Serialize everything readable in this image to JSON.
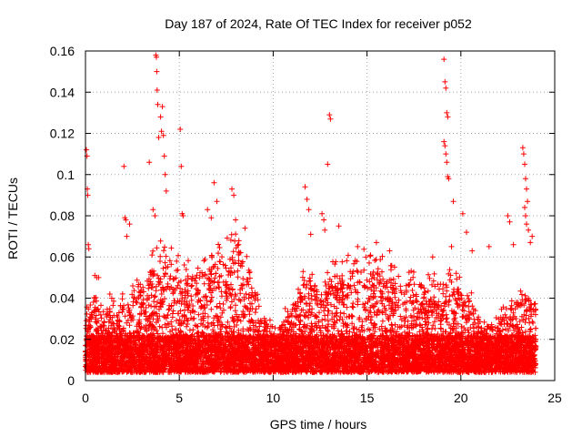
{
  "chart_data": {
    "type": "scatter",
    "title": "Day 187 of 2024, Rate Of TEC Index for receiver p052",
    "xlabel": "GPS time / hours",
    "ylabel": "ROTI / TECUs",
    "xlim": [
      0,
      25
    ],
    "ylim": [
      0,
      0.16
    ],
    "xticks": [
      0,
      5,
      10,
      15,
      20,
      25
    ],
    "yticks": [
      0,
      0.02,
      0.04,
      0.06,
      0.08,
      0.1,
      0.12,
      0.14,
      0.16
    ],
    "xtick_labels": [
      "0",
      "5",
      "10",
      "15",
      "20",
      "25"
    ],
    "ytick_labels": [
      "0",
      "0.02",
      "0.04",
      "0.06",
      "0.08",
      "0.1",
      "0.12",
      "0.14",
      "0.16"
    ],
    "grid": true,
    "legend": "none",
    "marker": "+",
    "series_color": "#ff0000",
    "data_time_range_hours": [
      0,
      24
    ],
    "points": [
      [
        0.05,
        0.112
      ],
      [
        0.08,
        0.109
      ],
      [
        0.1,
        0.093
      ],
      [
        0.12,
        0.09
      ],
      [
        0.15,
        0.066
      ],
      [
        0.18,
        0.064
      ],
      [
        0.5,
        0.051
      ],
      [
        0.6,
        0.05
      ],
      [
        0.7,
        0.05
      ],
      [
        1.3,
        0.042
      ],
      [
        1.4,
        0.04
      ],
      [
        2.05,
        0.104
      ],
      [
        2.1,
        0.079
      ],
      [
        2.15,
        0.078
      ],
      [
        2.2,
        0.07
      ],
      [
        2.35,
        0.076
      ],
      [
        3.4,
        0.106
      ],
      [
        3.6,
        0.083
      ],
      [
        3.7,
        0.08
      ],
      [
        3.75,
        0.158
      ],
      [
        3.78,
        0.157
      ],
      [
        3.8,
        0.15
      ],
      [
        3.82,
        0.141
      ],
      [
        3.85,
        0.134
      ],
      [
        3.9,
        0.118
      ],
      [
        4.0,
        0.128
      ],
      [
        4.05,
        0.121
      ],
      [
        4.1,
        0.133
      ],
      [
        4.15,
        0.119
      ],
      [
        4.2,
        0.109
      ],
      [
        4.25,
        0.1
      ],
      [
        4.3,
        0.092
      ],
      [
        5.05,
        0.122
      ],
      [
        5.1,
        0.104
      ],
      [
        5.15,
        0.081
      ],
      [
        5.2,
        0.08
      ],
      [
        6.5,
        0.083
      ],
      [
        6.7,
        0.079
      ],
      [
        6.85,
        0.096
      ],
      [
        7.0,
        0.087
      ],
      [
        7.8,
        0.093
      ],
      [
        7.9,
        0.09
      ],
      [
        8.0,
        0.078
      ],
      [
        8.5,
        0.074
      ],
      [
        11.7,
        0.094
      ],
      [
        11.8,
        0.088
      ],
      [
        11.9,
        0.083
      ],
      [
        12.0,
        0.071
      ],
      [
        12.6,
        0.081
      ],
      [
        12.7,
        0.078
      ],
      [
        12.75,
        0.073
      ],
      [
        12.9,
        0.105
      ],
      [
        13.0,
        0.129
      ],
      [
        13.05,
        0.127
      ],
      [
        13.5,
        0.075
      ],
      [
        14.5,
        0.065
      ],
      [
        15.5,
        0.067
      ],
      [
        16.2,
        0.063
      ],
      [
        18.5,
        0.06
      ],
      [
        19.1,
        0.156
      ],
      [
        19.15,
        0.145
      ],
      [
        19.2,
        0.142
      ],
      [
        19.25,
        0.13
      ],
      [
        19.3,
        0.128
      ],
      [
        19.1,
        0.116
      ],
      [
        19.15,
        0.114
      ],
      [
        19.2,
        0.11
      ],
      [
        19.25,
        0.106
      ],
      [
        19.3,
        0.099
      ],
      [
        19.35,
        0.098
      ],
      [
        19.6,
        0.087
      ],
      [
        19.5,
        0.065
      ],
      [
        20.1,
        0.081
      ],
      [
        20.3,
        0.072
      ],
      [
        20.6,
        0.063
      ],
      [
        21.5,
        0.065
      ],
      [
        22.5,
        0.08
      ],
      [
        22.6,
        0.077
      ],
      [
        22.8,
        0.066
      ],
      [
        23.3,
        0.113
      ],
      [
        23.35,
        0.11
      ],
      [
        23.4,
        0.105
      ],
      [
        23.45,
        0.098
      ],
      [
        23.5,
        0.093
      ],
      [
        23.55,
        0.087
      ],
      [
        23.4,
        0.084
      ],
      [
        23.45,
        0.08
      ],
      [
        23.5,
        0.076
      ],
      [
        23.6,
        0.073
      ],
      [
        23.8,
        0.07
      ],
      [
        23.7,
        0.067
      ]
    ],
    "density_profile": [
      [
        0.0,
        0.028
      ],
      [
        0.5,
        0.032
      ],
      [
        1.0,
        0.028
      ],
      [
        1.5,
        0.03
      ],
      [
        2.0,
        0.035
      ],
      [
        2.5,
        0.04
      ],
      [
        3.0,
        0.042
      ],
      [
        3.5,
        0.05
      ],
      [
        4.0,
        0.058
      ],
      [
        4.5,
        0.055
      ],
      [
        5.0,
        0.05
      ],
      [
        5.5,
        0.048
      ],
      [
        6.0,
        0.046
      ],
      [
        6.5,
        0.05
      ],
      [
        7.0,
        0.054
      ],
      [
        7.5,
        0.058
      ],
      [
        8.0,
        0.06
      ],
      [
        8.5,
        0.052
      ],
      [
        9.0,
        0.038
      ],
      [
        9.5,
        0.026
      ],
      [
        10.0,
        0.022
      ],
      [
        10.5,
        0.025
      ],
      [
        11.0,
        0.032
      ],
      [
        11.5,
        0.042
      ],
      [
        12.0,
        0.045
      ],
      [
        12.5,
        0.042
      ],
      [
        13.0,
        0.046
      ],
      [
        13.5,
        0.048
      ],
      [
        14.0,
        0.05
      ],
      [
        14.5,
        0.055
      ],
      [
        15.0,
        0.052
      ],
      [
        15.5,
        0.048
      ],
      [
        16.0,
        0.05
      ],
      [
        16.5,
        0.045
      ],
      [
        17.0,
        0.042
      ],
      [
        17.5,
        0.044
      ],
      [
        18.0,
        0.042
      ],
      [
        18.5,
        0.044
      ],
      [
        19.0,
        0.043
      ],
      [
        19.5,
        0.044
      ],
      [
        20.0,
        0.04
      ],
      [
        20.5,
        0.035
      ],
      [
        21.0,
        0.026
      ],
      [
        21.5,
        0.022
      ],
      [
        22.0,
        0.025
      ],
      [
        22.5,
        0.032
      ],
      [
        23.0,
        0.034
      ],
      [
        23.5,
        0.038
      ],
      [
        24.0,
        0.03
      ]
    ]
  }
}
